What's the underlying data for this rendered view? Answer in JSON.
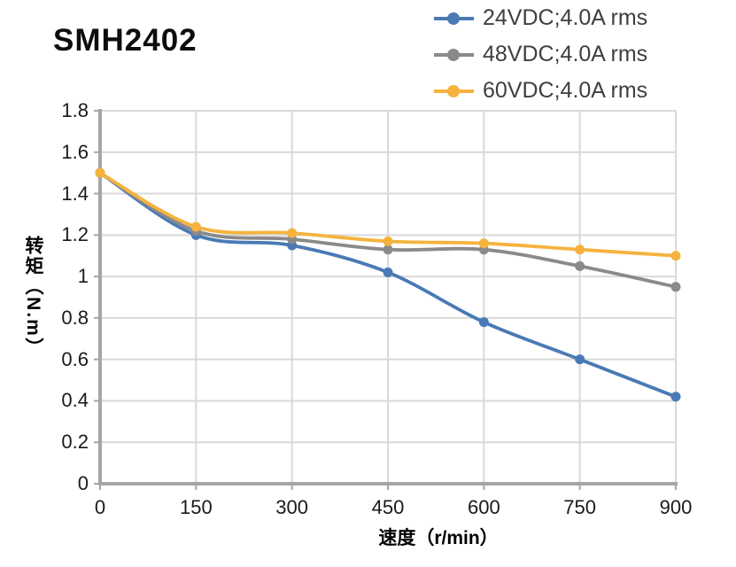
{
  "title": "SMH2402",
  "chart_data": {
    "type": "line",
    "x": [
      0,
      150,
      300,
      450,
      600,
      750,
      900
    ],
    "series": [
      {
        "name": "24VDC;4.0A rms",
        "color": "#4a7ab5",
        "values": [
          1.5,
          1.2,
          1.15,
          1.02,
          0.78,
          0.6,
          0.42
        ]
      },
      {
        "name": "48VDC;4.0A rms",
        "color": "#8a8a8a",
        "values": [
          1.5,
          1.22,
          1.18,
          1.13,
          1.13,
          1.05,
          0.95
        ]
      },
      {
        "name": "60VDC;4.0A rms",
        "color": "#f5b33e",
        "values": [
          1.5,
          1.24,
          1.21,
          1.17,
          1.16,
          1.13,
          1.1
        ]
      }
    ],
    "xlabel": "速度（r/min）",
    "ylabel": "转矩（N.m）",
    "xlim": [
      0,
      900
    ],
    "ylim": [
      0,
      1.8
    ],
    "xticks": [
      0,
      150,
      300,
      450,
      600,
      750,
      900
    ],
    "xtick_labels": [
      "0",
      "150",
      "300",
      "450",
      "600",
      "750",
      "900"
    ],
    "yticks": [
      0,
      0.2,
      0.4,
      0.6,
      0.8,
      1,
      1.2,
      1.4,
      1.6,
      1.8
    ],
    "ytick_labels": [
      "0",
      "0.2",
      "0.4",
      "0.6",
      "0.8",
      "1",
      "1.2",
      "1.4",
      "1.6",
      "1.8"
    ],
    "grid": true,
    "legend_position": "top-right",
    "colors": {
      "gridline": "#d9d9d9",
      "axis": "#a6a6a6"
    }
  }
}
